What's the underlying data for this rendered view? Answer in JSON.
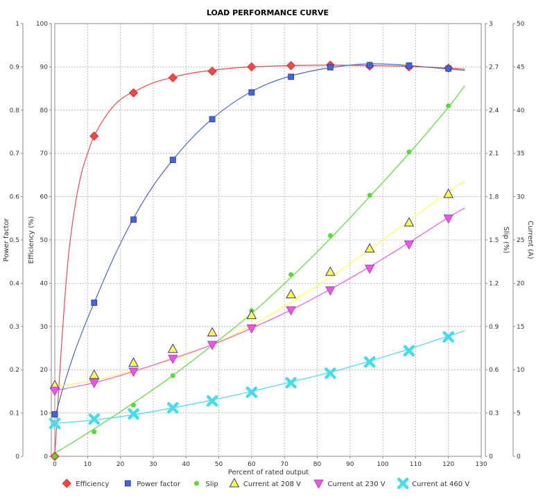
{
  "chart_data": {
    "type": "scatter",
    "title": "LOAD PERFORMANCE CURVE",
    "xlabel": "Percent of rated output",
    "xlim": [
      0,
      130
    ],
    "x_ticks": [
      "0",
      "10",
      "20",
      "30",
      "40",
      "50",
      "60",
      "70",
      "80",
      "90",
      "100",
      "110",
      "120",
      "130"
    ],
    "grid": true,
    "legend_position": "bottom",
    "axes": [
      {
        "id": "pf",
        "label": "Power factor",
        "side": "left-outer",
        "lim": [
          0,
          1
        ],
        "ticks": [
          "0",
          "0.1",
          "0.2",
          "0.3",
          "0.4",
          "0.5",
          "0.6",
          "0.7",
          "0.8",
          "0.9",
          "1"
        ]
      },
      {
        "id": "eff",
        "label": "Efficiency (%)",
        "side": "left-inner",
        "lim": [
          0,
          100
        ],
        "ticks": [
          "0",
          "10",
          "20",
          "30",
          "40",
          "50",
          "60",
          "70",
          "80",
          "90",
          "100"
        ]
      },
      {
        "id": "slip",
        "label": "Slip (%)",
        "side": "right-inner",
        "lim": [
          0,
          3
        ],
        "ticks": [
          "0",
          "0.3",
          "0.6",
          "0.9",
          "1.2",
          "1.5",
          "1.8",
          "2.1",
          "2.4",
          "2.7",
          "3"
        ]
      },
      {
        "id": "cur",
        "label": "Current (A)",
        "side": "right-outer",
        "lim": [
          0,
          50
        ],
        "ticks": [
          "0",
          "5",
          "10",
          "15",
          "20",
          "25",
          "30",
          "35",
          "40",
          "45",
          "50"
        ]
      }
    ],
    "series": [
      {
        "name": "Efficiency",
        "axis": "eff",
        "marker": "diamond",
        "color": "#ff4444",
        "points": [
          [
            0,
            0
          ],
          [
            12,
            74
          ],
          [
            24,
            84
          ],
          [
            36,
            87.5
          ],
          [
            48,
            89
          ],
          [
            60,
            90
          ],
          [
            72,
            90.3
          ],
          [
            84,
            90.4
          ],
          [
            96,
            90.2
          ],
          [
            108,
            90
          ],
          [
            120,
            89.7
          ]
        ],
        "curve": [
          [
            0,
            0
          ],
          [
            2,
            25
          ],
          [
            4,
            45
          ],
          [
            6,
            57
          ],
          [
            8,
            65
          ],
          [
            10,
            70
          ],
          [
            12,
            74
          ],
          [
            15,
            78
          ],
          [
            18,
            81
          ],
          [
            21,
            83
          ],
          [
            24,
            84.2
          ],
          [
            30,
            86.3
          ],
          [
            36,
            87.6
          ],
          [
            42,
            88.6
          ],
          [
            48,
            89.2
          ],
          [
            54,
            89.7
          ],
          [
            60,
            90
          ],
          [
            72,
            90.3
          ],
          [
            84,
            90.4
          ],
          [
            96,
            90.3
          ],
          [
            108,
            90.1
          ],
          [
            120,
            89.7
          ],
          [
            125,
            89.5
          ]
        ]
      },
      {
        "name": "Power factor",
        "axis": "pf",
        "marker": "square",
        "color": "#4466dd",
        "points": [
          [
            0,
            0.097
          ],
          [
            12,
            0.355
          ],
          [
            24,
            0.547
          ],
          [
            36,
            0.685
          ],
          [
            48,
            0.779
          ],
          [
            60,
            0.841
          ],
          [
            72,
            0.877
          ],
          [
            84,
            0.899
          ],
          [
            96,
            0.904
          ],
          [
            108,
            0.903
          ],
          [
            120,
            0.896
          ]
        ],
        "curve": [
          [
            0,
            0.09
          ],
          [
            3,
            0.17
          ],
          [
            6,
            0.24
          ],
          [
            9,
            0.3
          ],
          [
            12,
            0.355
          ],
          [
            18,
            0.46
          ],
          [
            24,
            0.55
          ],
          [
            30,
            0.625
          ],
          [
            36,
            0.685
          ],
          [
            42,
            0.737
          ],
          [
            48,
            0.78
          ],
          [
            54,
            0.815
          ],
          [
            60,
            0.843
          ],
          [
            66,
            0.864
          ],
          [
            72,
            0.879
          ],
          [
            78,
            0.89
          ],
          [
            84,
            0.898
          ],
          [
            90,
            0.904
          ],
          [
            96,
            0.907
          ],
          [
            102,
            0.906
          ],
          [
            108,
            0.903
          ],
          [
            114,
            0.899
          ],
          [
            120,
            0.895
          ],
          [
            125,
            0.892
          ]
        ]
      },
      {
        "name": "Slip",
        "axis": "slip",
        "marker": "circle",
        "color": "#55dd33",
        "points": [
          [
            0,
            0
          ],
          [
            12,
            0.17
          ],
          [
            24,
            0.355
          ],
          [
            36,
            0.56
          ],
          [
            48,
            0.775
          ],
          [
            60,
            1.01
          ],
          [
            72,
            1.26
          ],
          [
            84,
            1.53
          ],
          [
            96,
            1.81
          ],
          [
            108,
            2.11
          ],
          [
            120,
            2.43
          ]
        ],
        "curve": [
          [
            0,
            0.02
          ],
          [
            12,
            0.19
          ],
          [
            24,
            0.37
          ],
          [
            36,
            0.56
          ],
          [
            48,
            0.77
          ],
          [
            60,
            0.99
          ],
          [
            72,
            1.24
          ],
          [
            84,
            1.51
          ],
          [
            96,
            1.8
          ],
          [
            108,
            2.1
          ],
          [
            120,
            2.42
          ],
          [
            125,
            2.57
          ]
        ]
      },
      {
        "name": "Current at 208 V",
        "axis": "cur",
        "marker": "triangle-up",
        "color": "#ffff44",
        "points": [
          [
            0,
            8.2
          ],
          [
            12,
            9.4
          ],
          [
            24,
            10.8
          ],
          [
            36,
            12.4
          ],
          [
            48,
            14.3
          ],
          [
            60,
            16.3
          ],
          [
            72,
            18.7
          ],
          [
            84,
            21.3
          ],
          [
            96,
            24
          ],
          [
            108,
            27
          ],
          [
            120,
            30.3
          ]
        ],
        "curve": [
          [
            0,
            8
          ],
          [
            12,
            8.8
          ],
          [
            24,
            9.9
          ],
          [
            36,
            11.2
          ],
          [
            48,
            12.9
          ],
          [
            60,
            15.1
          ],
          [
            72,
            17.8
          ],
          [
            84,
            20.7
          ],
          [
            96,
            23.9
          ],
          [
            108,
            27.2
          ],
          [
            120,
            30.6
          ],
          [
            125,
            31.8
          ]
        ]
      },
      {
        "name": "Current at 230 V",
        "axis": "cur",
        "marker": "triangle-down",
        "color": "#ee55ee",
        "points": [
          [
            0,
            7.6
          ],
          [
            12,
            8.5
          ],
          [
            24,
            9.8
          ],
          [
            36,
            11.3
          ],
          [
            48,
            12.9
          ],
          [
            60,
            14.8
          ],
          [
            72,
            16.9
          ],
          [
            84,
            19.2
          ],
          [
            96,
            21.7
          ],
          [
            108,
            24.5
          ],
          [
            120,
            27.5
          ]
        ],
        "curve": [
          [
            0,
            7.6
          ],
          [
            12,
            8.5
          ],
          [
            24,
            9.8
          ],
          [
            36,
            11.3
          ],
          [
            48,
            12.9
          ],
          [
            60,
            14.8
          ],
          [
            72,
            16.9
          ],
          [
            84,
            19.3
          ],
          [
            96,
            21.9
          ],
          [
            108,
            24.7
          ],
          [
            120,
            27.6
          ],
          [
            125,
            28.7
          ]
        ]
      },
      {
        "name": "Current at 460 V",
        "axis": "cur",
        "marker": "x",
        "color": "#44ddee",
        "points": [
          [
            0,
            3.8
          ],
          [
            12,
            4.3
          ],
          [
            24,
            4.9
          ],
          [
            36,
            5.6
          ],
          [
            48,
            6.4
          ],
          [
            60,
            7.4
          ],
          [
            72,
            8.5
          ],
          [
            84,
            9.6
          ],
          [
            96,
            10.9
          ],
          [
            108,
            12.2
          ],
          [
            120,
            13.8
          ]
        ],
        "curve": [
          [
            0,
            3.8
          ],
          [
            12,
            4.2
          ],
          [
            24,
            4.8
          ],
          [
            36,
            5.6
          ],
          [
            48,
            6.5
          ],
          [
            60,
            7.5
          ],
          [
            72,
            8.6
          ],
          [
            84,
            9.7
          ],
          [
            96,
            11
          ],
          [
            108,
            12.4
          ],
          [
            120,
            13.9
          ],
          [
            125,
            14.5
          ]
        ]
      }
    ]
  }
}
